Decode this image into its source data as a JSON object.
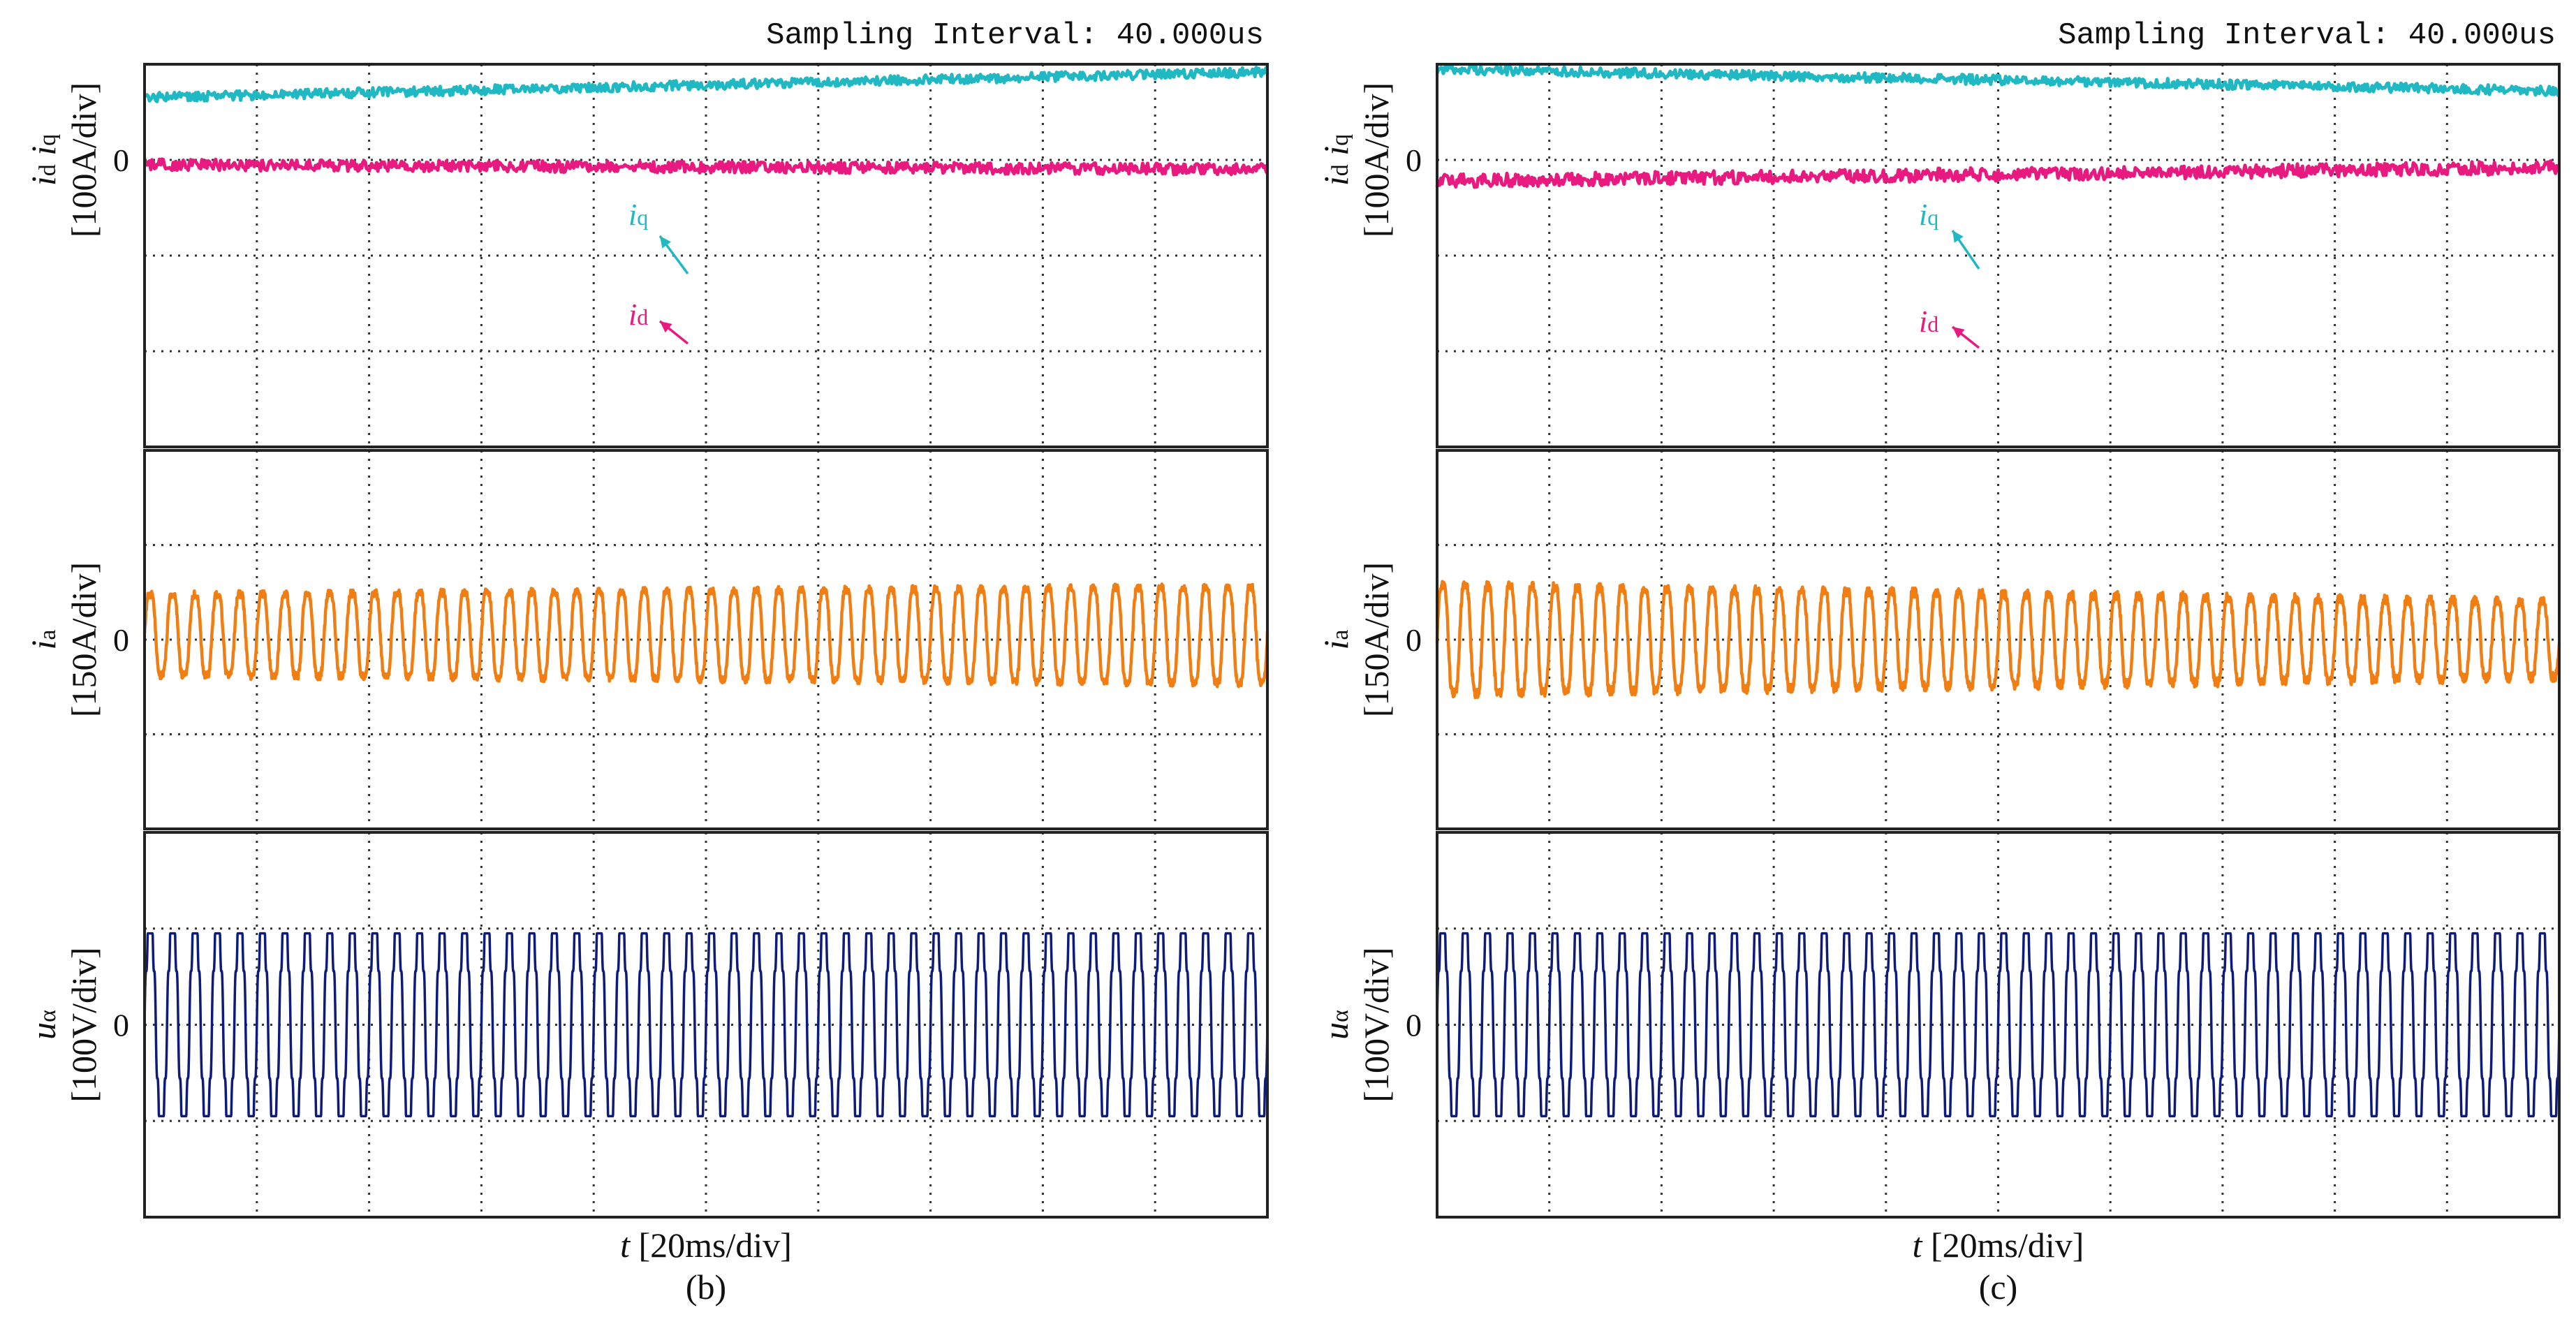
{
  "chart_data": [
    {
      "type": "line",
      "caption": "(b)",
      "header": "Sampling Interval:  40.000us",
      "xlabel": {
        "sym": "t",
        "unit": " [20ms/div]"
      },
      "x_divisions": 10,
      "panels": [
        {
          "id": "dq-currents",
          "ylabel": {
            "sym1": "i",
            "sub1": "d",
            "sym2": " i",
            "sub2": "q",
            "unit": "[100A/div]"
          },
          "zero_label": "0",
          "y_divisions": 4,
          "zero_div": 1,
          "series": [
            {
              "name": "iq",
              "label_sym": "i",
              "label_sub": "q",
              "color": "#1fb8c3",
              "kind": "dc",
              "start_div": 0.65,
              "end_div": 0.92,
              "noise_div": 0.05
            },
            {
              "name": "id",
              "label_sym": "i",
              "label_sub": "d",
              "color": "#e8197f",
              "kind": "dc",
              "start_div": -0.05,
              "end_div": -0.1,
              "noise_div": 0.06
            }
          ]
        },
        {
          "id": "phase-current",
          "ylabel": {
            "sym1": "i",
            "sub1": "a",
            "sym2": "",
            "sub2": "",
            "unit": "[150A/div]"
          },
          "zero_label": "0",
          "y_divisions": 4,
          "zero_div": 2,
          "series": [
            {
              "name": "ia",
              "color": "#f07e12",
              "kind": "sine",
              "cycles": 50,
              "amp_start_div": 0.48,
              "amp_end_div": 0.58,
              "offset_div": 0.05,
              "noise_div": 0.04
            }
          ]
        },
        {
          "id": "phase-voltage",
          "ylabel": {
            "sym1": "u",
            "sub1": "α",
            "sym2": "",
            "sub2": "",
            "unit": "[100V/div]"
          },
          "zero_label": "0",
          "y_divisions": 4,
          "zero_div": 2,
          "series": [
            {
              "name": "ualpha",
              "color": "#0d1b7a",
              "kind": "pwm",
              "cycles": 50,
              "amp_div": 0.95
            }
          ]
        }
      ]
    },
    {
      "type": "line",
      "caption": "(c)",
      "header": "Sampling Interval:  40.000us",
      "xlabel": {
        "sym": "t",
        "unit": " [20ms/div]"
      },
      "x_divisions": 10,
      "panels": [
        {
          "id": "dq-currents",
          "ylabel": {
            "sym1": "i",
            "sub1": "d",
            "sym2": " i",
            "sub2": "q",
            "unit": "[100A/div]"
          },
          "zero_label": "0",
          "y_divisions": 4,
          "zero_div": 1,
          "series": [
            {
              "name": "iq",
              "label_sym": "i",
              "label_sub": "q",
              "color": "#1fb8c3",
              "kind": "dc",
              "start_div": 0.95,
              "end_div": 0.72,
              "noise_div": 0.05
            },
            {
              "name": "id",
              "label_sym": "i",
              "label_sub": "d",
              "color": "#e8197f",
              "kind": "dc",
              "start_div": -0.22,
              "end_div": -0.08,
              "noise_div": 0.07
            }
          ]
        },
        {
          "id": "phase-current",
          "ylabel": {
            "sym1": "i",
            "sub1": "a",
            "sym2": "",
            "sub2": "",
            "unit": "[150A/div]"
          },
          "zero_label": "0",
          "y_divisions": 4,
          "zero_div": 2,
          "series": [
            {
              "name": "ia",
              "color": "#f07e12",
              "kind": "sine",
              "cycles": 50,
              "amp_start_div": 0.65,
              "amp_end_div": 0.45,
              "offset_div": 0.0,
              "noise_div": 0.05
            }
          ]
        },
        {
          "id": "phase-voltage",
          "ylabel": {
            "sym1": "u",
            "sub1": "α",
            "sym2": "",
            "sub2": "",
            "unit": "[100V/div]"
          },
          "zero_label": "0",
          "y_divisions": 4,
          "zero_div": 2,
          "series": [
            {
              "name": "ualpha",
              "color": "#0d1b7a",
              "kind": "pwm",
              "cycles": 50,
              "amp_div": 0.95
            }
          ]
        }
      ]
    }
  ]
}
